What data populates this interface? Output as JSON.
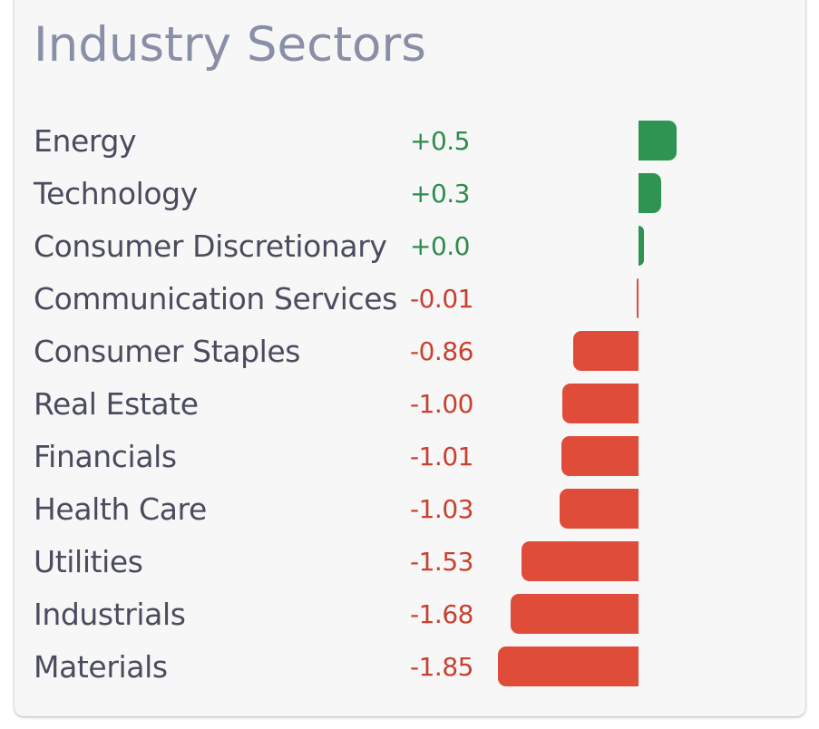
{
  "title": "Industry Sectors",
  "colors": {
    "positive": "#2f9352",
    "negative": "#df4c3a",
    "positive_text": "#2e8b4d",
    "negative_text": "#c9402f",
    "title": "#8a8fa8",
    "label": "#4a4c5e"
  },
  "chart_data": {
    "type": "bar",
    "orientation": "horizontal",
    "title": "Industry Sectors",
    "categories": [
      "Energy",
      "Technology",
      "Consumer Discretionary",
      "Communication Services",
      "Consumer Staples",
      "Real Estate",
      "Financials",
      "Health Care",
      "Utilities",
      "Industrials",
      "Materials"
    ],
    "values": [
      0.5,
      0.3,
      0.0,
      -0.01,
      -0.86,
      -1.0,
      -1.01,
      -1.03,
      -1.53,
      -1.68,
      -1.85
    ],
    "value_labels": [
      "+0.5",
      "+0.3",
      "+0.0",
      "-0.01",
      "-0.86",
      "-1.00",
      "-1.01",
      "-1.03",
      "-1.53",
      "-1.68",
      "-1.85"
    ],
    "xlim": [
      -1.85,
      0.5
    ],
    "grid": false,
    "legend": "none"
  }
}
